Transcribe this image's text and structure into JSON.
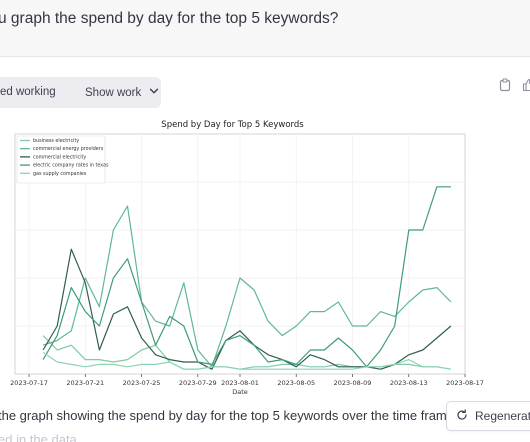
{
  "conversation": {
    "user_message": "u graph the spend by day for the top 5 keywords?",
    "work_status": "ed working",
    "show_work_label": "Show work",
    "caption": "the graph showing the spend by day for the top 5 keywords over the time fram",
    "caption_faded": "ed in the data",
    "regenerate_label": "Regenerate"
  },
  "icons": {
    "toggle": "chevron-down-icon",
    "copy": "clipboard-icon",
    "like": "thumbs-up-icon",
    "regenerate": "refresh-icon"
  },
  "colors": {
    "business electricity": "#7fc9a8",
    "commercial energy providers": "#5fb896",
    "commercial electricity": "#2f5e4a",
    "electric company rates in texas": "#3f9c78",
    "gas supply companies": "#8fd4b3"
  },
  "chart_data": {
    "type": "line",
    "title": "Spend by Day for Top 5 Keywords",
    "xlabel": "Date",
    "ylabel": "",
    "grid": true,
    "legend": "top-left",
    "x_ticks": [
      "2023-07-17",
      "2023-07-21",
      "2023-07-25",
      "2023-07-29",
      "2023-08-01",
      "2023-08-05",
      "2023-08-09",
      "2023-08-13",
      "2023-08-17"
    ],
    "x": [
      "2023-07-18",
      "2023-07-19",
      "2023-07-20",
      "2023-07-21",
      "2023-07-22",
      "2023-07-23",
      "2023-07-24",
      "2023-07-25",
      "2023-07-26",
      "2023-07-27",
      "2023-07-28",
      "2023-07-29",
      "2023-07-30",
      "2023-07-31",
      "2023-08-01",
      "2023-08-02",
      "2023-08-03",
      "2023-08-04",
      "2023-08-05",
      "2023-08-06",
      "2023-08-07",
      "2023-08-08",
      "2023-08-09",
      "2023-08-10",
      "2023-08-11",
      "2023-08-12",
      "2023-08-13",
      "2023-08-14",
      "2023-08-15",
      "2023-08-16"
    ],
    "ylim": [
      0,
      100
    ],
    "series": [
      {
        "name": "business electricity",
        "values": [
          16,
          10,
          12,
          6,
          6,
          5,
          6,
          10,
          12,
          5,
          2,
          2,
          3,
          3,
          2,
          3,
          3,
          4,
          4,
          3,
          3,
          4,
          3,
          3,
          3,
          4,
          4,
          3,
          3,
          2
        ]
      },
      {
        "name": "commercial energy providers",
        "values": [
          12,
          14,
          18,
          40,
          28,
          60,
          70,
          30,
          22,
          20,
          38,
          10,
          3,
          20,
          40,
          35,
          22,
          16,
          20,
          26,
          26,
          30,
          20,
          20,
          26,
          24,
          30,
          35,
          36,
          30
        ]
      },
      {
        "name": "commercial electricity",
        "values": [
          10,
          20,
          52,
          38,
          10,
          25,
          28,
          15,
          8,
          6,
          5,
          5,
          2,
          14,
          18,
          12,
          8,
          6,
          3,
          8,
          6,
          3,
          3,
          3,
          2,
          4,
          8,
          10,
          15,
          20
        ]
      },
      {
        "name": "electric company rates in texas",
        "values": [
          6,
          16,
          36,
          26,
          20,
          40,
          48,
          30,
          12,
          24,
          20,
          5,
          4,
          14,
          16,
          12,
          5,
          6,
          4,
          10,
          10,
          15,
          10,
          3,
          10,
          20,
          60,
          60,
          78,
          78
        ]
      },
      {
        "name": "gas supply companies",
        "values": [
          9,
          5,
          4,
          3,
          4,
          4,
          3,
          4,
          4,
          5,
          2,
          2,
          3,
          3,
          2,
          2,
          2,
          2,
          2,
          2,
          2,
          2,
          2,
          3,
          3,
          4,
          6,
          3,
          3,
          2
        ]
      }
    ]
  }
}
